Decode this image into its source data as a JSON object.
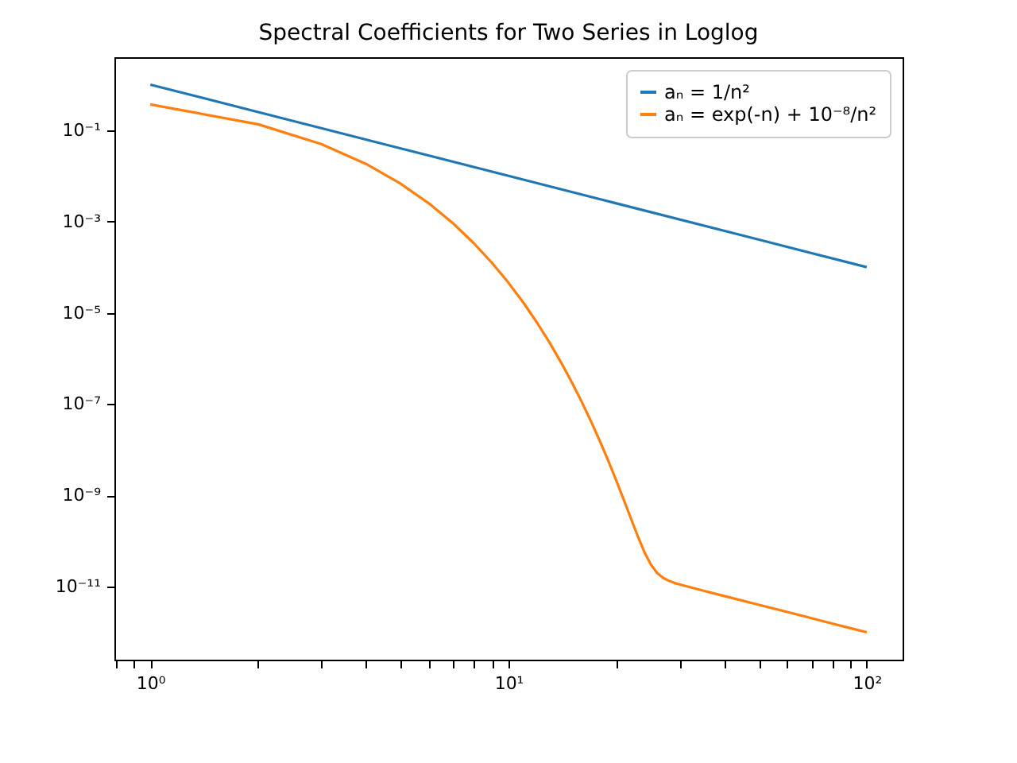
{
  "chart_data": {
    "type": "line",
    "title": "Spectral Coefficients for Two Series in Loglog",
    "series": [
      {
        "name": "aₙ = 1/n²",
        "color": "#1f77b4",
        "x": [
          1,
          2,
          5,
          10,
          20,
          50,
          100
        ],
        "values": [
          1,
          0.25,
          0.04,
          0.01,
          0.0025,
          0.0004,
          0.0001
        ]
      },
      {
        "name": "aₙ = exp(-n) + 10⁻⁸/n²",
        "color": "#ff7f0e",
        "x": [
          1,
          2,
          3,
          4,
          5,
          6,
          7,
          8,
          9,
          10,
          11,
          12,
          13,
          14,
          15,
          16,
          17,
          18,
          19,
          20,
          21,
          22,
          23,
          24,
          25,
          26,
          27,
          28,
          29,
          30,
          35,
          40,
          50,
          60,
          70,
          80,
          90,
          100
        ],
        "values": [
          0.368,
          0.135,
          0.0498,
          0.0183,
          0.00674,
          0.00248,
          0.000912,
          0.000335,
          0.000123,
          4.54e-05,
          1.67e-05,
          6.14e-06,
          2.26e-06,
          8.32e-07,
          3.06e-07,
          1.13e-07,
          4.14e-08,
          1.53e-08,
          5.63e-09,
          2.09e-09,
          7.81e-10,
          3e-10,
          1.22e-10,
          5.51e-11,
          2.99e-11,
          1.99e-11,
          1.56e-11,
          1.35e-11,
          1.21e-11,
          1.12e-11,
          8.16e-12,
          6.25e-12,
          4e-12,
          2.78e-12,
          2.04e-12,
          1.56e-12,
          1.23e-12,
          1e-12
        ]
      }
    ],
    "log": "xy",
    "xlim": [
      0.794,
      125.9
    ],
    "ylim": [
      2.51e-13,
      3.98
    ],
    "xticks": [
      {
        "value": 0.8,
        "label": null
      },
      {
        "value": 0.9,
        "label": null
      },
      {
        "value": 1,
        "label": "10⁰"
      },
      {
        "value": 2,
        "label": null
      },
      {
        "value": 3,
        "label": null
      },
      {
        "value": 4,
        "label": null
      },
      {
        "value": 5,
        "label": null
      },
      {
        "value": 6,
        "label": null
      },
      {
        "value": 7,
        "label": null
      },
      {
        "value": 8,
        "label": null
      },
      {
        "value": 9,
        "label": null
      },
      {
        "value": 10,
        "label": "10¹"
      },
      {
        "value": 20,
        "label": null
      },
      {
        "value": 30,
        "label": null
      },
      {
        "value": 40,
        "label": null
      },
      {
        "value": 50,
        "label": null
      },
      {
        "value": 60,
        "label": null
      },
      {
        "value": 70,
        "label": null
      },
      {
        "value": 80,
        "label": null
      },
      {
        "value": 90,
        "label": null
      },
      {
        "value": 100,
        "label": "10²"
      }
    ],
    "yticks": [
      {
        "value": 0.1,
        "label": "10⁻¹"
      },
      {
        "value": 0.001,
        "label": "10⁻³"
      },
      {
        "value": 1e-05,
        "label": "10⁻⁵"
      },
      {
        "value": 1e-07,
        "label": "10⁻⁷"
      },
      {
        "value": 1e-09,
        "label": "10⁻⁹"
      },
      {
        "value": 1e-11,
        "label": "10⁻¹¹"
      }
    ],
    "grid": false,
    "legend": "top right",
    "marker": "none",
    "line_style": "solid"
  }
}
